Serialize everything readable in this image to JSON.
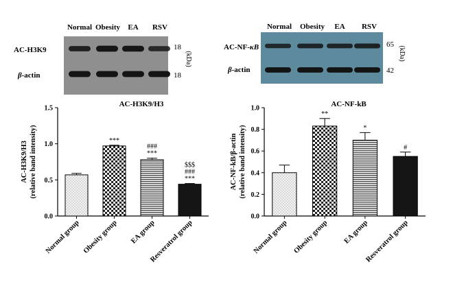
{
  "blots": [
    {
      "lanes": [
        "Normal",
        "Obesity",
        "EA",
        "RSV"
      ],
      "rows": [
        {
          "label": "AC-H3K9",
          "label_suffix": "",
          "kda": "18",
          "band_intensity": [
            0.72,
            0.92,
            0.9,
            0.6
          ]
        },
        {
          "label": "-actin",
          "label_prefix": "β",
          "kda": "18",
          "band_intensity": [
            0.96,
            0.96,
            0.96,
            0.96
          ]
        }
      ],
      "unit": "(kDa)"
    },
    {
      "lanes": [
        "Normal",
        "Obesity",
        "EA",
        "RSV"
      ],
      "rows": [
        {
          "label": "AC-NF-",
          "label_suffix": "κB",
          "kda": "65",
          "band_intensity": [
            0.55,
            0.62,
            0.62,
            0.7
          ]
        },
        {
          "label": "-actin",
          "label_prefix": "β",
          "kda": "42",
          "band_intensity": [
            0.96,
            0.96,
            0.96,
            0.96
          ]
        }
      ],
      "unit": "(kDa)"
    }
  ],
  "colors": {
    "blot1_background": "#8f8f8f",
    "blot2_background": "#5d8a9c",
    "band": "#111111"
  },
  "chart_data": [
    {
      "type": "bar",
      "title": "AC-H3K9/H3",
      "ylabel_line1": "AC-H3K9/H3",
      "ylabel_line2": "(relative band intensity)",
      "categories": [
        "Normal group",
        "Obesity group",
        "EA group",
        "Resveratrol group"
      ],
      "values": [
        0.57,
        0.97,
        0.78,
        0.44
      ],
      "errors": [
        0.02,
        0.01,
        0.02,
        0.01
      ],
      "annotations": [
        [],
        [
          "***"
        ],
        [
          "###",
          "***"
        ],
        [
          "$$$",
          "###",
          "***"
        ]
      ],
      "patterns": [
        "dots",
        "checker",
        "hlines",
        "solid"
      ],
      "ylim": [
        0,
        1.5
      ],
      "yticks": [
        "0.0",
        "0.5",
        "1.0",
        "1.5"
      ],
      "ytick_values": [
        0,
        0.5,
        1.0,
        1.5
      ]
    },
    {
      "type": "bar",
      "title": "AC-NF-kB",
      "ylabel_line1": "AC-NF-kB/β-actin",
      "ylabel_line2": "(relative band intensity)",
      "categories": [
        "Normal group",
        "Obesity group",
        "EA group",
        "Resveratrol group"
      ],
      "values": [
        0.4,
        0.83,
        0.7,
        0.55
      ],
      "errors": [
        0.07,
        0.07,
        0.07,
        0.04
      ],
      "annotations": [
        [],
        [
          "**"
        ],
        [
          "*"
        ],
        [
          "#"
        ]
      ],
      "patterns": [
        "dots",
        "checker",
        "hlines",
        "solid"
      ],
      "ylim": [
        0,
        1.0
      ],
      "yticks": [
        "0.0",
        "0.2",
        "0.4",
        "0.6",
        "0.8",
        "1.0"
      ],
      "ytick_values": [
        0,
        0.2,
        0.4,
        0.6,
        0.8,
        1.0
      ]
    }
  ]
}
